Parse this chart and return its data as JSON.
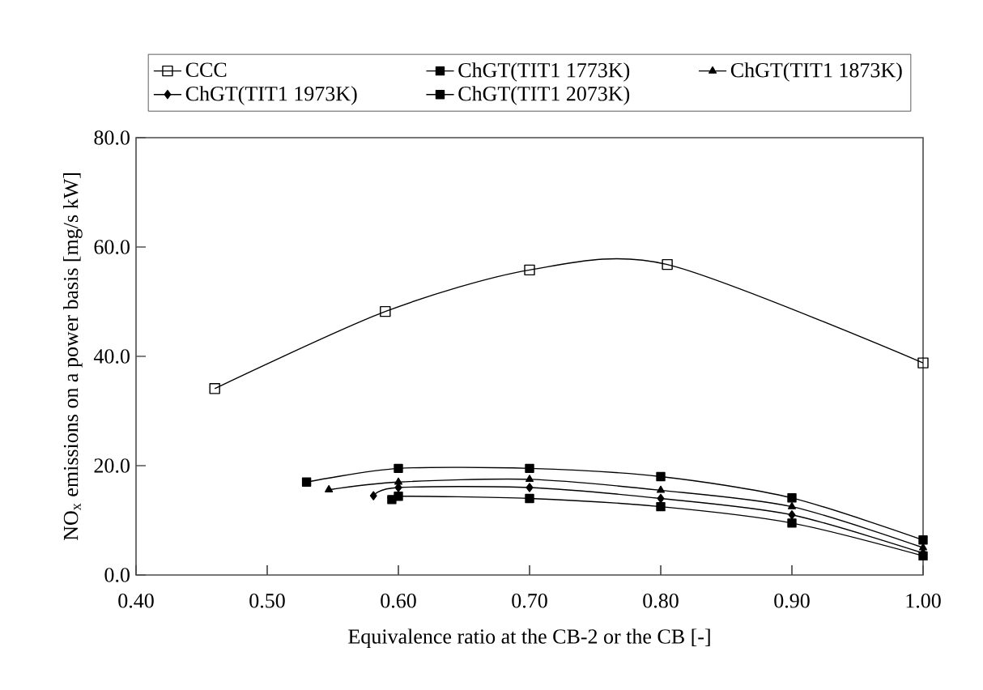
{
  "chart_data": {
    "type": "line",
    "xlabel": "Equivalence ratio at the CB-2 or the CB [-]",
    "ylabel": "NO$_{x}$ emissions on a power basis [mg/s kW]",
    "xlim": [
      0.4,
      1.0
    ],
    "xticks": [
      {
        "value": 0.4,
        "label": "0.40"
      },
      {
        "value": 0.5,
        "label": "0.50"
      },
      {
        "value": 0.6,
        "label": "0.60"
      },
      {
        "value": 0.7,
        "label": "0.70"
      },
      {
        "value": 0.8,
        "label": "0.80"
      },
      {
        "value": 0.9,
        "label": "0.90"
      },
      {
        "value": 1.0,
        "label": "1.00"
      }
    ],
    "ylim": [
      0,
      80
    ],
    "yticks": [
      {
        "value": 0,
        "label": "0.0"
      },
      {
        "value": 20,
        "label": "20.0"
      },
      {
        "value": 40,
        "label": "40.0"
      },
      {
        "value": 60,
        "label": "60.0"
      },
      {
        "value": 80,
        "label": "80.0"
      }
    ],
    "grid": false,
    "legend": "top",
    "series": [
      {
        "name": "CCC",
        "color": "#000000",
        "marker": "square",
        "x": [
          0.46,
          0.59,
          0.7,
          0.805,
          1.0
        ],
        "values": [
          34.1,
          48.2,
          55.8,
          56.8,
          38.8
        ]
      },
      {
        "name": "ChGT(TIT1 1773K)",
        "color": "#000000",
        "marker": "square",
        "x": [
          0.53,
          0.6,
          0.7,
          0.8,
          0.9,
          1.0
        ],
        "values": [
          17.0,
          19.5,
          19.5,
          18.0,
          14.1,
          6.4
        ]
      },
      {
        "name": "ChGT(TIT1 1873K)",
        "color": "#000000",
        "marker": "triangle",
        "x": [
          0.547,
          0.6,
          0.7,
          0.8,
          0.9,
          1.0
        ],
        "values": [
          15.6,
          17.0,
          17.5,
          15.5,
          12.5,
          5.0
        ]
      },
      {
        "name": "ChGT(TIT1 1973K)",
        "color": "#000000",
        "marker": "diamond",
        "x": [
          0.581,
          0.6,
          0.7,
          0.8,
          0.9,
          1.0
        ],
        "values": [
          14.5,
          16.0,
          16.0,
          14.0,
          11.0,
          4.0
        ]
      },
      {
        "name": "ChGT(TIT1 2073K)",
        "color": "#000000",
        "marker": "square",
        "x": [
          0.595,
          0.6,
          0.7,
          0.8,
          0.9,
          1.0
        ],
        "values": [
          13.8,
          14.4,
          14.0,
          12.5,
          9.5,
          3.5
        ]
      }
    ]
  }
}
